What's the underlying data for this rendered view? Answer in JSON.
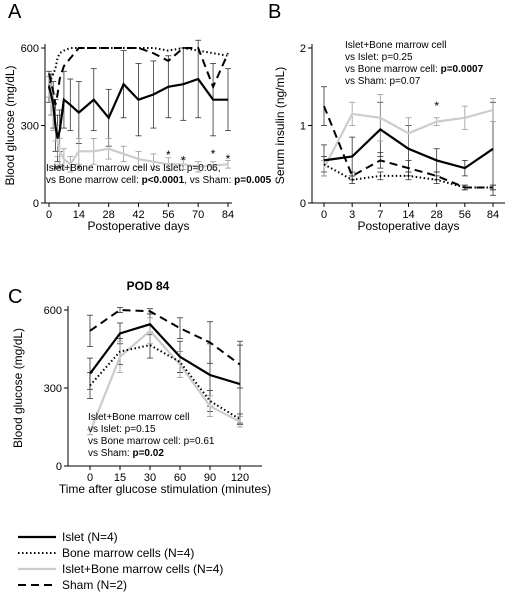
{
  "chart_data": [
    {
      "type": "line",
      "panel_label": "A",
      "x_label": "Postoperative days",
      "y_label": "Blood glucose (mg/dL)",
      "x": [
        0,
        1,
        2,
        3,
        4,
        5,
        7,
        10,
        14,
        21,
        28,
        35,
        42,
        49,
        56,
        63,
        70,
        77,
        84
      ],
      "xlim": [
        0,
        84
      ],
      "xticks": [
        0,
        14,
        28,
        42,
        56,
        70,
        84
      ],
      "ylim": [
        0,
        600
      ],
      "yticks": [
        0,
        300,
        600
      ],
      "series": [
        {
          "name": "Islet (N=4)",
          "color": "#000000",
          "dash": "solid",
          "values": [
            450,
            420,
            380,
            300,
            250,
            280,
            400,
            380,
            350,
            400,
            330,
            460,
            400,
            420,
            450,
            460,
            480,
            400,
            400
          ],
          "errors": [
            60,
            80,
            90,
            100,
            90,
            80,
            110,
            100,
            120,
            120,
            110,
            130,
            140,
            130,
            120,
            140,
            150,
            140,
            120
          ]
        },
        {
          "name": "Bone marrow cells (N=4)",
          "color": "#000000",
          "dash": "dotted",
          "values": [
            450,
            480,
            500,
            520,
            560,
            580,
            590,
            600,
            600,
            600,
            600,
            600,
            600,
            600,
            590,
            600,
            590,
            580,
            570
          ]
        },
        {
          "name": "Islet+Bone marrow cells (N=4)",
          "color": "#cccccc",
          "dash": "solid",
          "values": [
            450,
            400,
            350,
            300,
            240,
            200,
            170,
            150,
            200,
            200,
            210,
            190,
            170,
            160,
            150,
            150,
            140,
            145,
            150
          ],
          "errors": [
            40,
            60,
            70,
            60,
            60,
            50,
            40,
            30,
            50,
            50,
            40,
            30,
            30,
            30,
            25,
            20,
            20,
            15,
            15
          ]
        },
        {
          "name": "Sham (N=2)",
          "color": "#000000",
          "dash": "dashed",
          "values": [
            500,
            470,
            430,
            380,
            420,
            480,
            530,
            560,
            600,
            600,
            600,
            600,
            600,
            580,
            550,
            600,
            600,
            450,
            580
          ]
        }
      ],
      "markers": [
        {
          "text": "**",
          "x": 4,
          "y": 115
        },
        {
          "text": "*",
          "x": 14,
          "y": 115
        },
        {
          "text": "*",
          "x": 56,
          "y": 170
        },
        {
          "text": "*",
          "x": 63,
          "y": 150
        },
        {
          "text": "*",
          "x": 77,
          "y": 175
        },
        {
          "text": "*",
          "x": 84,
          "y": 155
        }
      ],
      "stats": [
        [
          {
            "text": "Islet+Bone marrow cell vs Islet: p=0.06,"
          }
        ],
        [
          {
            "text": "vs Bone marrow cell: "
          },
          {
            "text": "p<0.0001",
            "bold": true
          },
          {
            "text": ", vs Sham: "
          },
          {
            "text": "p=0.005",
            "bold": true
          }
        ]
      ]
    },
    {
      "type": "line",
      "panel_label": "B",
      "x_label": "Postoperative days",
      "y_label": "Serum insulin (ng/mL)",
      "categories": [
        "0",
        "3",
        "7",
        "14",
        "28",
        "56",
        "84"
      ],
      "ylim": [
        0,
        2
      ],
      "yticks": [
        0,
        1,
        2
      ],
      "series": [
        {
          "name": "Islet (N=4)",
          "color": "#000000",
          "dash": "solid",
          "values": [
            0.55,
            0.6,
            0.95,
            0.7,
            0.55,
            0.45,
            0.7
          ],
          "errors": [
            0.2,
            0.25,
            0.35,
            0.3,
            0.15,
            0.1,
            0.6
          ]
        },
        {
          "name": "Bone marrow cells (N=4)",
          "color": "#000000",
          "dash": "dotted",
          "values": [
            0.5,
            0.3,
            0.35,
            0.35,
            0.3,
            0.2,
            0.2
          ],
          "errors": [
            0.1,
            0.05,
            0.05,
            0.05,
            0.05,
            0.03,
            0.03
          ]
        },
        {
          "name": "Islet+Bone marrow cells (N=4)",
          "color": "#cccccc",
          "dash": "solid",
          "values": [
            0.45,
            1.15,
            1.1,
            0.9,
            1.05,
            1.1,
            1.2
          ],
          "errors": [
            0.1,
            0.15,
            0.3,
            0.2,
            0.05,
            0.15,
            0.15
          ]
        },
        {
          "name": "Sham (N=2)",
          "color": "#000000",
          "dash": "dashed",
          "values": [
            1.25,
            0.35,
            0.55,
            0.45,
            0.35,
            0.2,
            0.2
          ],
          "errors": [
            0.25,
            0.05,
            0.1,
            0.1,
            0.05,
            0.03,
            0.03
          ]
        }
      ],
      "markers": [
        {
          "text": "*",
          "x": "28",
          "y": 1.2
        }
      ],
      "stats": [
        [
          {
            "text": "Islet+Bone marrow cell"
          }
        ],
        [
          {
            "text": "vs Islet: p=0.25"
          }
        ],
        [
          {
            "text": "vs Bone marrow cell: "
          },
          {
            "text": "p=0.0007",
            "bold": true
          }
        ],
        [
          {
            "text": "vs Sham: p=0.07"
          }
        ]
      ]
    },
    {
      "type": "line",
      "panel_label": "C",
      "title": "POD 84",
      "x_label": "Time after glucose stimulation (minutes)",
      "y_label": "Blood glucose (mg/dL)",
      "categories": [
        "0",
        "15",
        "30",
        "60",
        "90",
        "120"
      ],
      "ylim": [
        0,
        600
      ],
      "yticks": [
        0,
        300,
        600
      ],
      "series": [
        {
          "name": "Islet (N=4)",
          "color": "#000000",
          "dash": "solid",
          "values": [
            355,
            510,
            545,
            420,
            350,
            315
          ],
          "errors": [
            60,
            40,
            40,
            60,
            120,
            150
          ]
        },
        {
          "name": "Bone marrow cells (N=4)",
          "color": "#000000",
          "dash": "dotted",
          "values": [
            310,
            440,
            465,
            400,
            250,
            180
          ],
          "errors": [
            50,
            50,
            50,
            40,
            40,
            20
          ]
        },
        {
          "name": "Islet+Bone marrow cells (N=4)",
          "color": "#cccccc",
          "dash": "solid",
          "values": [
            130,
            420,
            520,
            390,
            230,
            170
          ],
          "errors": [
            10,
            60,
            50,
            50,
            40,
            20
          ]
        },
        {
          "name": "Sham (N=2)",
          "color": "#000000",
          "dash": "dashed",
          "values": [
            520,
            600,
            595,
            530,
            475,
            390
          ],
          "errors": [
            60,
            10,
            10,
            40,
            80,
            90
          ]
        }
      ],
      "stats": [
        [
          {
            "text": "Islet+Bone marrow cell"
          }
        ],
        [
          {
            "text": "vs Islet: p=0.15"
          }
        ],
        [
          {
            "text": "vs Bone marrow cell: p=0.61"
          }
        ],
        [
          {
            "text": "vs Sham: "
          },
          {
            "text": "p=0.02",
            "bold": true
          }
        ]
      ]
    }
  ]
}
